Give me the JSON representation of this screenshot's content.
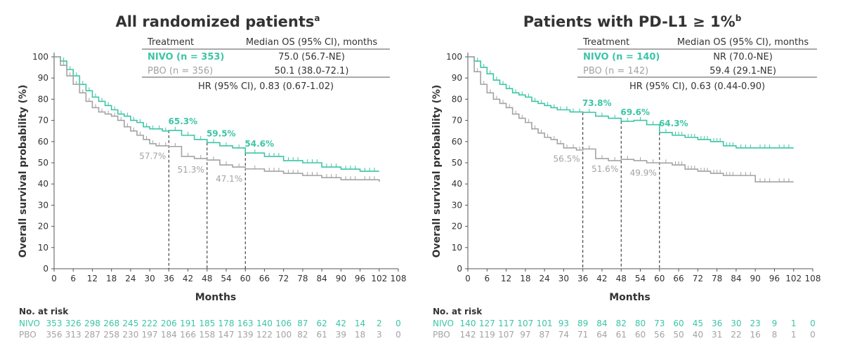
{
  "colors": {
    "nivo": "#3cc5a6",
    "pbo": "#a3a3a3",
    "text": "#333333",
    "axis": "#555555"
  },
  "chart_data": [
    {
      "type": "line",
      "title": "All randomized patients",
      "title_sup": "a",
      "xlabel": "Months",
      "ylabel": "Overall survival probability (%)",
      "xlim": [
        0,
        108
      ],
      "ylim": [
        0,
        100
      ],
      "xticks": [
        "0",
        "6",
        "12",
        "18",
        "24",
        "30",
        "36",
        "42",
        "48",
        "54",
        "60",
        "66",
        "72",
        "78",
        "84",
        "90",
        "96",
        "102",
        "108"
      ],
      "yticks": [
        "0",
        "10",
        "20",
        "30",
        "40",
        "50",
        "60",
        "70",
        "80",
        "90",
        "100"
      ],
      "table": {
        "headers": [
          "Treatment",
          "Median OS (95% CI), months"
        ],
        "rows": [
          {
            "treatment": "NIVO (n = 353)",
            "median": "75.0 (56.7-NE)",
            "series": "nivo"
          },
          {
            "treatment": "PBO (n = 356)",
            "median": "50.1 (38.0-72.1)",
            "series": "pbo"
          }
        ],
        "hr": "HR (95% CI), 0.83 (0.67-1.02)"
      },
      "series": [
        {
          "key": "nivo",
          "x": [
            0,
            2,
            4,
            6,
            8,
            10,
            12,
            14,
            16,
            18,
            20,
            22,
            24,
            26,
            28,
            30,
            32,
            34,
            36,
            40,
            44,
            48,
            52,
            56,
            60,
            66,
            72,
            78,
            84,
            90,
            96,
            102
          ],
          "y": [
            100,
            98,
            94,
            91,
            87,
            84,
            81,
            79,
            77,
            75,
            73,
            72,
            70,
            69,
            67,
            66,
            66,
            65,
            65.3,
            63,
            61,
            59.5,
            58,
            57,
            54.6,
            53,
            51,
            50,
            48,
            47,
            46,
            46
          ]
        },
        {
          "key": "pbo",
          "x": [
            0,
            2,
            4,
            6,
            8,
            10,
            12,
            14,
            16,
            18,
            20,
            22,
            24,
            26,
            28,
            30,
            32,
            34,
            36,
            40,
            44,
            48,
            52,
            56,
            60,
            66,
            72,
            78,
            84,
            90,
            96,
            102
          ],
          "y": [
            100,
            96,
            91,
            87,
            83,
            79,
            76,
            74,
            73,
            72,
            70,
            67,
            65,
            63,
            61,
            59,
            58,
            58,
            57.7,
            53,
            52,
            51.3,
            49,
            48,
            47.1,
            46,
            45,
            44,
            43,
            42,
            42,
            41
          ]
        }
      ],
      "landmarks": [
        {
          "x": 36,
          "nivo": "65.3%",
          "nivo_y": 65.3,
          "pbo": "57.7%",
          "pbo_y": 57.7
        },
        {
          "x": 48,
          "nivo": "59.5%",
          "nivo_y": 59.5,
          "pbo": "51.3%",
          "pbo_y": 51.3
        },
        {
          "x": 60,
          "nivo": "54.6%",
          "nivo_y": 54.6,
          "pbo": "47.1%",
          "pbo_y": 47.1
        }
      ],
      "at_risk": {
        "label": "No. at risk",
        "rows": [
          {
            "name": "NIVO",
            "series": "nivo",
            "values": [
              "353",
              "326",
              "298",
              "268",
              "245",
              "222",
              "206",
              "191",
              "185",
              "178",
              "163",
              "140",
              "106",
              "87",
              "62",
              "42",
              "14",
              "2",
              "0"
            ]
          },
          {
            "name": "PBO",
            "series": "pbo",
            "values": [
              "356",
              "313",
              "287",
              "258",
              "230",
              "197",
              "184",
              "166",
              "158",
              "147",
              "139",
              "122",
              "100",
              "82",
              "61",
              "39",
              "18",
              "3",
              "0"
            ]
          }
        ]
      }
    },
    {
      "type": "line",
      "title": "Patients with PD-L1 ≥ 1%",
      "title_sup": "b",
      "xlabel": "Months",
      "ylabel": "Overall survival probability (%)",
      "xlim": [
        0,
        108
      ],
      "ylim": [
        0,
        100
      ],
      "xticks": [
        "0",
        "6",
        "12",
        "18",
        "24",
        "30",
        "36",
        "42",
        "48",
        "54",
        "60",
        "66",
        "72",
        "78",
        "84",
        "90",
        "96",
        "102",
        "108"
      ],
      "yticks": [
        "0",
        "10",
        "20",
        "30",
        "40",
        "50",
        "60",
        "70",
        "80",
        "90",
        "100"
      ],
      "table": {
        "headers": [
          "Treatment",
          "Median OS (95% CI), months"
        ],
        "rows": [
          {
            "treatment": "NIVO (n = 140)",
            "median": "NR (70.0-NE)",
            "series": "nivo"
          },
          {
            "treatment": "PBO (n = 142)",
            "median": "59.4 (29.1-NE)",
            "series": "pbo"
          }
        ],
        "hr": "HR (95% CI), 0.63 (0.44-0.90)"
      },
      "series": [
        {
          "key": "nivo",
          "x": [
            0,
            2,
            4,
            6,
            8,
            10,
            12,
            14,
            16,
            18,
            20,
            22,
            24,
            26,
            28,
            30,
            32,
            34,
            36,
            40,
            44,
            48,
            52,
            56,
            60,
            64,
            68,
            72,
            76,
            80,
            84,
            90,
            96,
            102
          ],
          "y": [
            100,
            98,
            95,
            92,
            89,
            87,
            85,
            83,
            82,
            81,
            79,
            78,
            77,
            76,
            75,
            75,
            74,
            74,
            73.8,
            72,
            71,
            69.6,
            70,
            68,
            64.3,
            63,
            62,
            61,
            60,
            58,
            57,
            57,
            57,
            57
          ]
        },
        {
          "key": "pbo",
          "x": [
            0,
            2,
            4,
            6,
            8,
            10,
            12,
            14,
            16,
            18,
            20,
            22,
            24,
            26,
            28,
            30,
            32,
            34,
            36,
            40,
            44,
            48,
            52,
            56,
            60,
            64,
            68,
            72,
            76,
            80,
            84,
            90,
            96,
            102
          ],
          "y": [
            100,
            93,
            87,
            83,
            80,
            78,
            76,
            73,
            71,
            69,
            66,
            64,
            62,
            61,
            59,
            57,
            57,
            56,
            56.5,
            52,
            51,
            51.6,
            51,
            50,
            49.9,
            49,
            47,
            46,
            45,
            44,
            44,
            41,
            41,
            41
          ]
        }
      ],
      "landmarks": [
        {
          "x": 36,
          "nivo": "73.8%",
          "nivo_y": 73.8,
          "pbo": "56.5%",
          "pbo_y": 56.5
        },
        {
          "x": 48,
          "nivo": "69.6%",
          "nivo_y": 69.6,
          "pbo": "51.6%",
          "pbo_y": 51.6
        },
        {
          "x": 60,
          "nivo": "64.3%",
          "nivo_y": 64.3,
          "pbo": "49.9%",
          "pbo_y": 49.9
        }
      ],
      "at_risk": {
        "label": "No. at risk",
        "rows": [
          {
            "name": "NIVO",
            "series": "nivo",
            "values": [
              "140",
              "127",
              "117",
              "107",
              "101",
              "93",
              "89",
              "84",
              "82",
              "80",
              "73",
              "60",
              "45",
              "36",
              "30",
              "23",
              "9",
              "1",
              "0"
            ]
          },
          {
            "name": "PBO",
            "series": "pbo",
            "values": [
              "142",
              "119",
              "107",
              "97",
              "87",
              "74",
              "71",
              "64",
              "61",
              "60",
              "56",
              "50",
              "40",
              "31",
              "22",
              "16",
              "8",
              "1",
              "0"
            ]
          }
        ]
      }
    }
  ]
}
